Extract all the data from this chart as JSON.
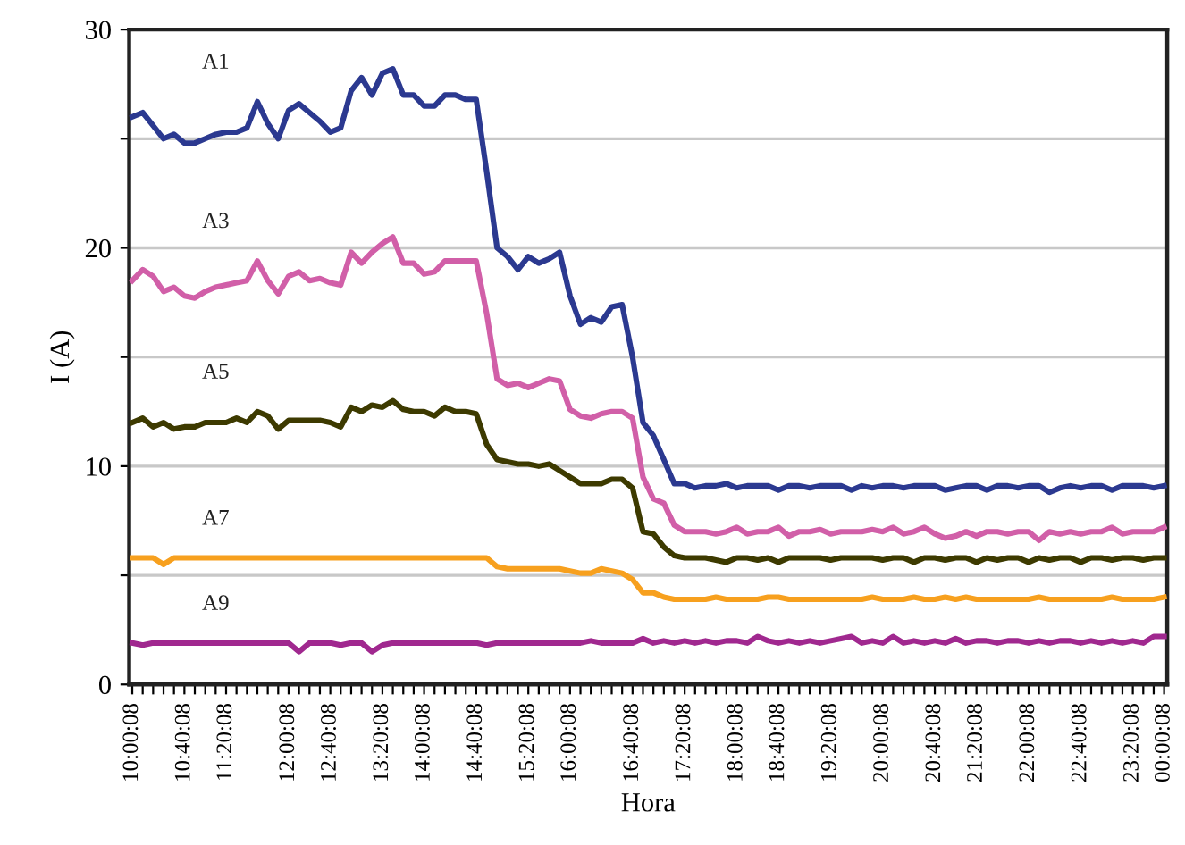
{
  "chart_data": {
    "type": "line",
    "xlabel": "Hora",
    "ylabel": "I (A)",
    "categories": [
      "10:00:08",
      null,
      null,
      null,
      null,
      "10:40:08",
      null,
      null,
      null,
      "11:20:08",
      null,
      null,
      null,
      null,
      null,
      "12:00:08",
      null,
      null,
      null,
      "12:40:08",
      null,
      null,
      null,
      null,
      "13:20:08",
      null,
      null,
      null,
      "14:00:08",
      null,
      null,
      null,
      null,
      "14:40:08",
      null,
      null,
      null,
      null,
      "15:20:08",
      null,
      null,
      null,
      "16:00:08",
      null,
      null,
      null,
      null,
      null,
      "16:40:08",
      null,
      null,
      null,
      null,
      "17:20:08",
      null,
      null,
      null,
      null,
      "18:00:08",
      null,
      null,
      null,
      "18:40:08",
      null,
      null,
      null,
      null,
      "19:20:08",
      null,
      null,
      null,
      null,
      "20:00:08",
      null,
      null,
      null,
      null,
      "20:40:08",
      null,
      null,
      null,
      "21:20:08",
      null,
      null,
      null,
      null,
      "22:00:08",
      null,
      null,
      null,
      null,
      "22:40:08",
      null,
      null,
      null,
      null,
      "23:20:08",
      null,
      null,
      "00:00:08"
    ],
    "ylim": [
      0,
      30
    ],
    "yticks": [
      0,
      {
        "value": 5,
        "label": null
      },
      10,
      {
        "value": 15,
        "label": null
      },
      20,
      {
        "value": 25,
        "label": null
      },
      30
    ],
    "grid": "y",
    "marker": "none",
    "line_style": "solid",
    "series": [
      {
        "name": "A1",
        "color": "#2b3990",
        "values": [
          26.0,
          26.2,
          25.6,
          25.0,
          25.2,
          24.8,
          24.8,
          25.0,
          25.2,
          25.3,
          25.3,
          25.5,
          26.7,
          25.7,
          25.0,
          26.3,
          26.6,
          26.2,
          25.8,
          25.3,
          25.5,
          27.2,
          27.8,
          27.0,
          28.0,
          28.2,
          27.0,
          27.0,
          26.5,
          26.5,
          27.0,
          27.0,
          26.8,
          26.8,
          23.5,
          20.0,
          19.6,
          19.0,
          19.6,
          19.3,
          19.5,
          19.8,
          17.8,
          16.5,
          16.8,
          16.6,
          17.3,
          17.4,
          15.0,
          12.0,
          11.4,
          10.3,
          9.2,
          9.2,
          9.0,
          9.1,
          9.1,
          9.2,
          9.0,
          9.1,
          9.1,
          9.1,
          8.9,
          9.1,
          9.1,
          9.0,
          9.1,
          9.1,
          9.1,
          8.9,
          9.1,
          9.0,
          9.1,
          9.1,
          9.0,
          9.1,
          9.1,
          9.1,
          8.9,
          9.0,
          9.1,
          9.1,
          8.9,
          9.1,
          9.1,
          9.0,
          9.1,
          9.1,
          8.8,
          9.0,
          9.1,
          9.0,
          9.1,
          9.1,
          8.9,
          9.1,
          9.1,
          9.1,
          9.0,
          9.1
        ]
      },
      {
        "name": "A3",
        "color": "#d15fa8",
        "values": [
          18.5,
          19.0,
          18.7,
          18.0,
          18.2,
          17.8,
          17.7,
          18.0,
          18.2,
          18.3,
          18.4,
          18.5,
          19.4,
          18.5,
          17.9,
          18.7,
          18.9,
          18.5,
          18.6,
          18.4,
          18.3,
          19.8,
          19.3,
          19.8,
          20.2,
          20.5,
          19.3,
          19.3,
          18.8,
          18.9,
          19.4,
          19.4,
          19.4,
          19.4,
          17.0,
          14.0,
          13.7,
          13.8,
          13.6,
          13.8,
          14.0,
          13.9,
          12.6,
          12.3,
          12.2,
          12.4,
          12.5,
          12.5,
          12.2,
          9.5,
          8.5,
          8.3,
          7.3,
          7.0,
          7.0,
          7.0,
          6.9,
          7.0,
          7.2,
          6.9,
          7.0,
          7.0,
          7.2,
          6.8,
          7.0,
          7.0,
          7.1,
          6.9,
          7.0,
          7.0,
          7.0,
          7.1,
          7.0,
          7.2,
          6.9,
          7.0,
          7.2,
          6.9,
          6.7,
          6.8,
          7.0,
          6.8,
          7.0,
          7.0,
          6.9,
          7.0,
          7.0,
          6.6,
          7.0,
          6.9,
          7.0,
          6.9,
          7.0,
          7.0,
          7.2,
          6.9,
          7.0,
          7.0,
          7.0,
          7.2
        ]
      },
      {
        "name": "A5",
        "color": "#3d3a00",
        "values": [
          12.0,
          12.2,
          11.8,
          12.0,
          11.7,
          11.8,
          11.8,
          12.0,
          12.0,
          12.0,
          12.2,
          12.0,
          12.5,
          12.3,
          11.7,
          12.1,
          12.1,
          12.1,
          12.1,
          12.0,
          11.8,
          12.7,
          12.5,
          12.8,
          12.7,
          13.0,
          12.6,
          12.5,
          12.5,
          12.3,
          12.7,
          12.5,
          12.5,
          12.4,
          11.0,
          10.3,
          10.2,
          10.1,
          10.1,
          10.0,
          10.1,
          9.8,
          9.5,
          9.2,
          9.2,
          9.2,
          9.4,
          9.4,
          9.0,
          7.0,
          6.9,
          6.3,
          5.9,
          5.8,
          5.8,
          5.8,
          5.7,
          5.6,
          5.8,
          5.8,
          5.7,
          5.8,
          5.6,
          5.8,
          5.8,
          5.8,
          5.8,
          5.7,
          5.8,
          5.8,
          5.8,
          5.8,
          5.7,
          5.8,
          5.8,
          5.6,
          5.8,
          5.8,
          5.7,
          5.8,
          5.8,
          5.6,
          5.8,
          5.7,
          5.8,
          5.8,
          5.6,
          5.8,
          5.7,
          5.8,
          5.8,
          5.6,
          5.8,
          5.8,
          5.7,
          5.8,
          5.8,
          5.7,
          5.8,
          5.8
        ]
      },
      {
        "name": "A7",
        "color": "#f7a01e",
        "values": [
          5.8,
          5.8,
          5.8,
          5.5,
          5.8,
          5.8,
          5.8,
          5.8,
          5.8,
          5.8,
          5.8,
          5.8,
          5.8,
          5.8,
          5.8,
          5.8,
          5.8,
          5.8,
          5.8,
          5.8,
          5.8,
          5.8,
          5.8,
          5.8,
          5.8,
          5.8,
          5.8,
          5.8,
          5.8,
          5.8,
          5.8,
          5.8,
          5.8,
          5.8,
          5.8,
          5.4,
          5.3,
          5.3,
          5.3,
          5.3,
          5.3,
          5.3,
          5.2,
          5.1,
          5.1,
          5.3,
          5.2,
          5.1,
          4.8,
          4.2,
          4.2,
          4.0,
          3.9,
          3.9,
          3.9,
          3.9,
          4.0,
          3.9,
          3.9,
          3.9,
          3.9,
          4.0,
          4.0,
          3.9,
          3.9,
          3.9,
          3.9,
          3.9,
          3.9,
          3.9,
          3.9,
          4.0,
          3.9,
          3.9,
          3.9,
          4.0,
          3.9,
          3.9,
          4.0,
          3.9,
          4.0,
          3.9,
          3.9,
          3.9,
          3.9,
          3.9,
          3.9,
          4.0,
          3.9,
          3.9,
          3.9,
          3.9,
          3.9,
          3.9,
          4.0,
          3.9,
          3.9,
          3.9,
          3.9,
          4.0
        ]
      },
      {
        "name": "A9",
        "color": "#a0288f",
        "values": [
          1.9,
          1.8,
          1.9,
          1.9,
          1.9,
          1.9,
          1.9,
          1.9,
          1.9,
          1.9,
          1.9,
          1.9,
          1.9,
          1.9,
          1.9,
          1.9,
          1.5,
          1.9,
          1.9,
          1.9,
          1.8,
          1.9,
          1.9,
          1.5,
          1.8,
          1.9,
          1.9,
          1.9,
          1.9,
          1.9,
          1.9,
          1.9,
          1.9,
          1.9,
          1.8,
          1.9,
          1.9,
          1.9,
          1.9,
          1.9,
          1.9,
          1.9,
          1.9,
          1.9,
          2.0,
          1.9,
          1.9,
          1.9,
          1.9,
          2.1,
          1.9,
          2.0,
          1.9,
          2.0,
          1.9,
          2.0,
          1.9,
          2.0,
          2.0,
          1.9,
          2.2,
          2.0,
          1.9,
          2.0,
          1.9,
          2.0,
          1.9,
          2.0,
          2.1,
          2.2,
          1.9,
          2.0,
          1.9,
          2.2,
          1.9,
          2.0,
          1.9,
          2.0,
          1.9,
          2.1,
          1.9,
          2.0,
          2.0,
          1.9,
          2.0,
          2.0,
          1.9,
          2.0,
          1.9,
          2.0,
          2.0,
          1.9,
          2.0,
          1.9,
          2.0,
          1.9,
          2.0,
          1.9,
          2.2,
          2.2
        ]
      }
    ]
  }
}
